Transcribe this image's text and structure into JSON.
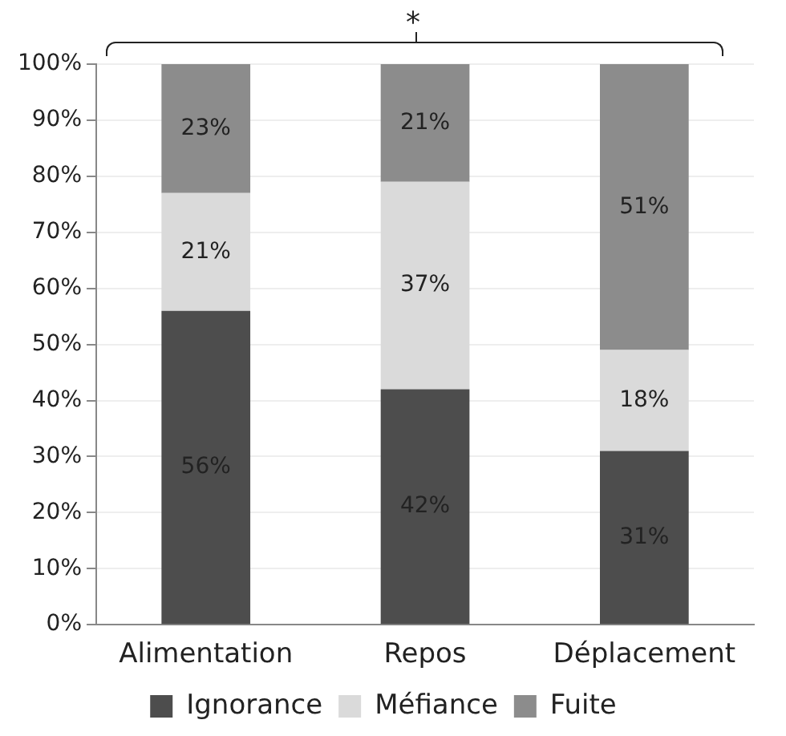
{
  "chart_data": {
    "type": "bar",
    "stacked": true,
    "categories": [
      "Alimentation",
      "Repos",
      "Déplacement"
    ],
    "series": [
      {
        "name": "Ignorance",
        "color": "#4d4d4d",
        "values": [
          56,
          42,
          31
        ],
        "value_labels": [
          "56%",
          "42%",
          "31%"
        ]
      },
      {
        "name": "Méfiance",
        "color": "#dadada",
        "values": [
          21,
          37,
          18
        ],
        "value_labels": [
          "21%",
          "37%",
          "18%"
        ]
      },
      {
        "name": "Fuite",
        "color": "#8c8c8c",
        "values": [
          23,
          21,
          51
        ],
        "value_labels": [
          "23%",
          "21%",
          "51%"
        ]
      }
    ],
    "ylim": [
      0,
      100
    ],
    "yticks": [
      {
        "value": 0,
        "label": "0%"
      },
      {
        "value": 10,
        "label": "10%"
      },
      {
        "value": 20,
        "label": "20%"
      },
      {
        "value": 30,
        "label": "30%"
      },
      {
        "value": 40,
        "label": "40%"
      },
      {
        "value": 50,
        "label": "50%"
      },
      {
        "value": 60,
        "label": "60%"
      },
      {
        "value": 70,
        "label": "70%"
      },
      {
        "value": 80,
        "label": "80%"
      },
      {
        "value": 90,
        "label": "90%"
      },
      {
        "value": 100,
        "label": "100%"
      }
    ],
    "grid": "y",
    "legend": "bottom",
    "annotations": [
      "*"
    ]
  }
}
